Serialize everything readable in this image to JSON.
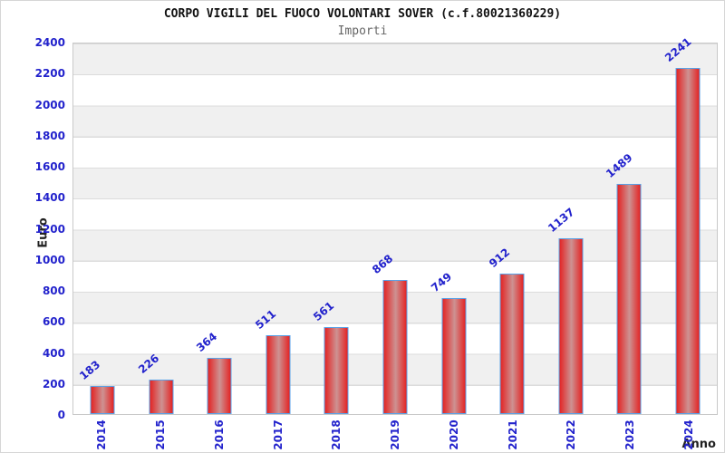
{
  "chart_data": {
    "type": "bar",
    "title": "CORPO VIGILI DEL FUOCO VOLONTARI SOVER (c.f.80021360229)",
    "subtitle": "Importi",
    "xlabel": "Anno",
    "ylabel": "Euro",
    "categories": [
      "2014",
      "2015",
      "2016",
      "2017",
      "2018",
      "2019",
      "2020",
      "2021",
      "2022",
      "2023",
      "2024"
    ],
    "values": [
      183,
      226,
      364,
      511,
      561,
      868,
      749,
      912,
      1137,
      1489,
      2241
    ],
    "ylim": [
      0,
      2400
    ],
    "ytick_step": 200,
    "grid": true,
    "legend": false,
    "band_fill_alternating": true,
    "colors": {
      "bar_fill": "#e32424",
      "bar_highlight": "#cd9292",
      "bar_border": "#58a2e8",
      "label_text": "#2222cc",
      "title_text": "#111111",
      "subtitle_text": "#666666",
      "band": "#f0f0f0",
      "gridline": "#dcdcdc"
    }
  }
}
